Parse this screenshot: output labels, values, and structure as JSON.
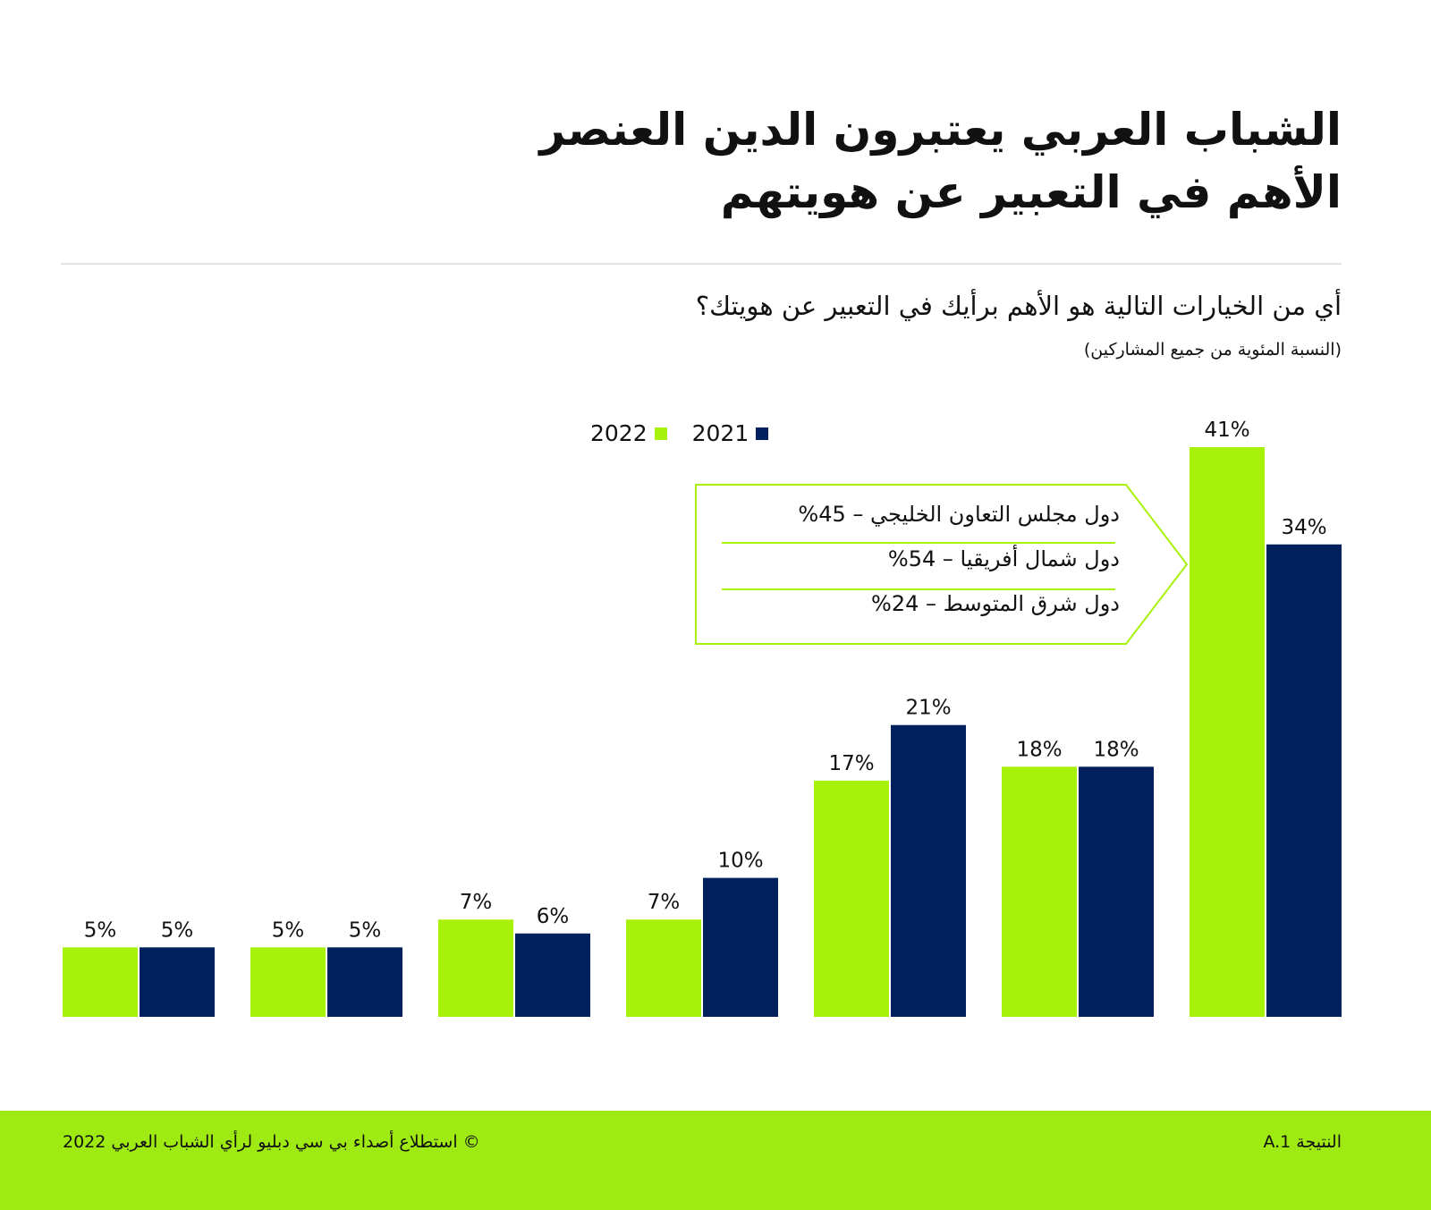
{
  "header": {
    "title_line1": "الشباب العربي يعتبرون الدين العنصر",
    "title_line2": "الأهم في التعبير عن هويتهم",
    "question": "أي من الخيارات التالية هو الأهم برأيك في التعبير عن هويتك؟",
    "subtitle": "(النسبة المئوية من جميع المشاركين)"
  },
  "callout": {
    "rows": [
      {
        "region": "دول مجلس التعاون الخليجي",
        "value": "45%"
      },
      {
        "region": "دول شمال أفريقيا",
        "value": "54%"
      },
      {
        "region": "دول شرق المتوسط",
        "value": "24%"
      }
    ]
  },
  "chart_data": {
    "type": "bar",
    "title": "أي من الخيارات التالية هو الأهم برأيك في التعبير عن هويتك؟",
    "categories": [
      "",
      "",
      "",
      "",
      "",
      "",
      ""
    ],
    "series": [
      {
        "name": "2022",
        "color": "#a8f10a",
        "values": [
          5,
          5,
          7,
          7,
          17,
          18,
          41
        ]
      },
      {
        "name": "2021",
        "color": "#00215e",
        "values": [
          5,
          5,
          6,
          10,
          21,
          18,
          34
        ]
      }
    ],
    "value_suffix": "%",
    "ylim": [
      0,
      41
    ],
    "grid": false,
    "legend": "top-center"
  },
  "footer": {
    "figure_label": "النتيجة A.1",
    "copyright": "© استطلاع أصداء بي سي دبليو لرأي الشباب العربي 2022"
  }
}
